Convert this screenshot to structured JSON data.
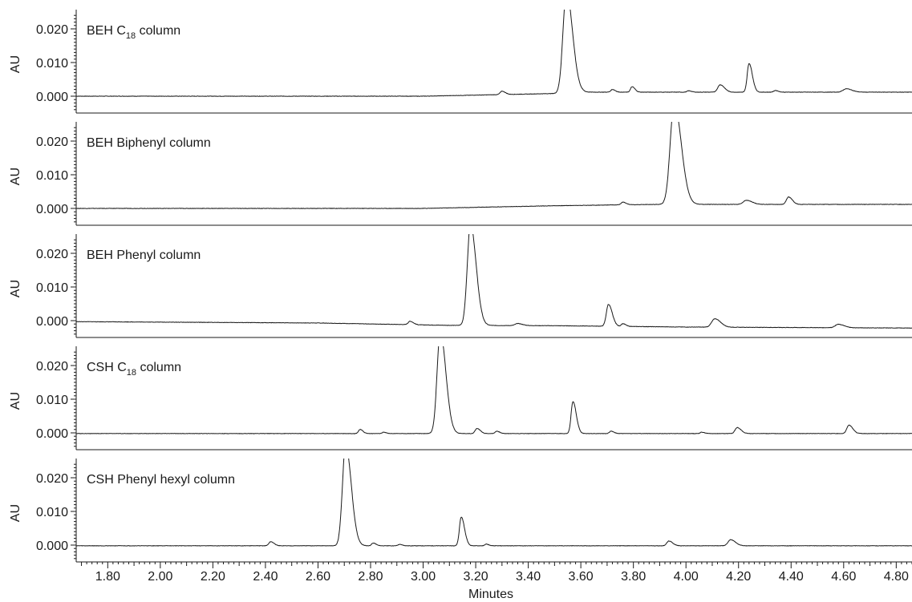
{
  "chart_data": {
    "type": "line",
    "xlabel": "Minutes",
    "ylabel": "AU",
    "xlim": [
      1.68,
      4.86
    ],
    "ylim": [
      -0.0045,
      0.0245
    ],
    "x_ticks": [
      "1.80",
      "2.00",
      "2.20",
      "2.40",
      "2.60",
      "2.80",
      "3.00",
      "3.20",
      "3.40",
      "3.60",
      "3.80",
      "4.00",
      "4.20",
      "4.40",
      "4.60",
      "4.80"
    ],
    "y_ticks": [
      "0.000",
      "0.010",
      "0.020"
    ],
    "panels": [
      {
        "label_main": "BEH C",
        "label_sub": "18",
        "label_rest": " column",
        "baseline": [
          [
            1.68,
            0.0
          ],
          [
            3.0,
            0.0
          ],
          [
            3.5,
            0.0008
          ],
          [
            3.6,
            0.0012
          ],
          [
            4.86,
            0.0012
          ]
        ],
        "peaks": [
          [
            3.3,
            0.001,
            0.007
          ],
          [
            3.545,
            0.03,
            0.013
          ],
          [
            3.72,
            0.0008,
            0.006
          ],
          [
            3.795,
            0.0016,
            0.006
          ],
          [
            4.01,
            0.0004,
            0.006
          ],
          [
            4.13,
            0.0022,
            0.009
          ],
          [
            4.24,
            0.0085,
            0.007
          ],
          [
            4.34,
            0.0005,
            0.006
          ],
          [
            4.61,
            0.001,
            0.012
          ]
        ]
      },
      {
        "label_main": "BEH Biphenyl column",
        "label_sub": "",
        "label_rest": "",
        "baseline": [
          [
            1.68,
            0.0
          ],
          [
            3.0,
            0.0
          ],
          [
            3.5,
            0.0008
          ],
          [
            3.9,
            0.0012
          ],
          [
            4.86,
            0.0012
          ]
        ],
        "peaks": [
          [
            3.76,
            0.0008,
            0.007
          ],
          [
            3.955,
            0.03,
            0.015
          ],
          [
            4.23,
            0.0012,
            0.012
          ],
          [
            4.39,
            0.0022,
            0.008
          ]
        ]
      },
      {
        "label_main": "BEH Phenyl column",
        "label_sub": "",
        "label_rest": "",
        "baseline": [
          [
            1.68,
            -0.0003
          ],
          [
            2.6,
            -0.0007
          ],
          [
            3.1,
            -0.0014
          ],
          [
            3.5,
            -0.0015
          ],
          [
            4.0,
            -0.0019
          ],
          [
            4.6,
            -0.0021
          ],
          [
            4.86,
            -0.0022
          ]
        ],
        "peaks": [
          [
            2.95,
            0.001,
            0.007
          ],
          [
            3.18,
            0.03,
            0.012
          ],
          [
            3.36,
            0.0006,
            0.01
          ],
          [
            3.705,
            0.0065,
            0.008
          ],
          [
            3.76,
            0.0008,
            0.006
          ],
          [
            4.11,
            0.0025,
            0.012
          ],
          [
            4.58,
            0.001,
            0.012
          ]
        ]
      },
      {
        "label_main": "CSH C",
        "label_sub": "18",
        "label_rest": " column",
        "baseline": [
          [
            1.68,
            -0.0002
          ],
          [
            2.8,
            -0.0002
          ],
          [
            3.4,
            -0.0002
          ],
          [
            4.86,
            -0.0002
          ]
        ],
        "peaks": [
          [
            2.76,
            0.0012,
            0.006
          ],
          [
            2.85,
            0.0004,
            0.005
          ],
          [
            3.065,
            0.03,
            0.012
          ],
          [
            3.205,
            0.0015,
            0.007
          ],
          [
            3.28,
            0.0007,
            0.006
          ],
          [
            3.57,
            0.0095,
            0.007
          ],
          [
            3.715,
            0.0007,
            0.006
          ],
          [
            4.06,
            0.0004,
            0.006
          ],
          [
            4.195,
            0.0018,
            0.008
          ],
          [
            4.62,
            0.0025,
            0.008
          ]
        ]
      },
      {
        "label_main": "CSH Phenyl hexyl column",
        "label_sub": "",
        "label_rest": "",
        "baseline": [
          [
            1.68,
            -0.0002
          ],
          [
            3.0,
            -0.0002
          ],
          [
            4.86,
            -0.0002
          ]
        ],
        "peaks": [
          [
            2.42,
            0.0012,
            0.007
          ],
          [
            2.705,
            0.03,
            0.012
          ],
          [
            2.81,
            0.0008,
            0.006
          ],
          [
            2.91,
            0.0004,
            0.006
          ],
          [
            3.145,
            0.0085,
            0.007
          ],
          [
            3.24,
            0.0005,
            0.005
          ],
          [
            3.935,
            0.0014,
            0.008
          ],
          [
            4.17,
            0.0018,
            0.01
          ]
        ]
      }
    ]
  }
}
